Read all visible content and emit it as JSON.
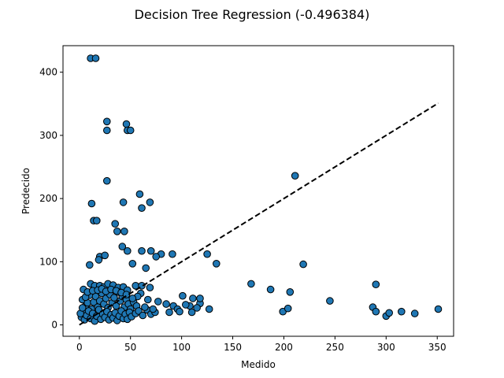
{
  "chart_data": {
    "type": "scatter",
    "title": "Decision Tree Regression (-0.496384)",
    "xlabel": "Medido",
    "ylabel": "Predecido",
    "xlim": [
      -16,
      366
    ],
    "ylim": [
      -18,
      442
    ],
    "xticks": [
      0,
      50,
      100,
      150,
      200,
      250,
      300,
      350
    ],
    "yticks": [
      0,
      100,
      200,
      300,
      400
    ],
    "grid": false,
    "marker_color": "#1f77b4",
    "reference_line": {
      "from": [
        0,
        0
      ],
      "to": [
        351,
        351
      ],
      "style": "dashed",
      "color": "#000000"
    },
    "points": [
      [
        11,
        422
      ],
      [
        16,
        422
      ],
      [
        46,
        318
      ],
      [
        27,
        322
      ],
      [
        27,
        308
      ],
      [
        47,
        308
      ],
      [
        50,
        308
      ],
      [
        27,
        228
      ],
      [
        211,
        236
      ],
      [
        59,
        207
      ],
      [
        43,
        194
      ],
      [
        12,
        192
      ],
      [
        69,
        194
      ],
      [
        61,
        185
      ],
      [
        14,
        165
      ],
      [
        17,
        165
      ],
      [
        35,
        160
      ],
      [
        37,
        148
      ],
      [
        44,
        148
      ],
      [
        42,
        124
      ],
      [
        47,
        117
      ],
      [
        61,
        117
      ],
      [
        70,
        117
      ],
      [
        80,
        112
      ],
      [
        91,
        112
      ],
      [
        75,
        108
      ],
      [
        125,
        112
      ],
      [
        20,
        108
      ],
      [
        25,
        110
      ],
      [
        19,
        103
      ],
      [
        10,
        95
      ],
      [
        52,
        97
      ],
      [
        65,
        90
      ],
      [
        134,
        97
      ],
      [
        219,
        96
      ],
      [
        168,
        65
      ],
      [
        187,
        56
      ],
      [
        206,
        52
      ],
      [
        245,
        38
      ],
      [
        290,
        64
      ],
      [
        287,
        28
      ],
      [
        290,
        21
      ],
      [
        300,
        14
      ],
      [
        303,
        19
      ],
      [
        315,
        21
      ],
      [
        328,
        18
      ],
      [
        351,
        25
      ],
      [
        199,
        21
      ],
      [
        204,
        26
      ],
      [
        108,
        30
      ],
      [
        118,
        34
      ],
      [
        111,
        42
      ],
      [
        118,
        42
      ],
      [
        101,
        46
      ],
      [
        127,
        25
      ],
      [
        77,
        37
      ],
      [
        85,
        33
      ],
      [
        88,
        20
      ],
      [
        92,
        30
      ],
      [
        96,
        25
      ],
      [
        98,
        21
      ],
      [
        104,
        32
      ],
      [
        110,
        20
      ],
      [
        115,
        27
      ],
      [
        4,
        56
      ],
      [
        11,
        65
      ],
      [
        15,
        62
      ],
      [
        20,
        62
      ],
      [
        24,
        60
      ],
      [
        28,
        65
      ],
      [
        33,
        63
      ],
      [
        38,
        59
      ],
      [
        43,
        60
      ],
      [
        47,
        55
      ],
      [
        55,
        62
      ],
      [
        61,
        62
      ],
      [
        69,
        59
      ],
      [
        3,
        40
      ],
      [
        6,
        30
      ],
      [
        8,
        35
      ],
      [
        10,
        47
      ],
      [
        12,
        25
      ],
      [
        14,
        36
      ],
      [
        16,
        45
      ],
      [
        18,
        28
      ],
      [
        20,
        38
      ],
      [
        22,
        50
      ],
      [
        24,
        33
      ],
      [
        26,
        42
      ],
      [
        28,
        27
      ],
      [
        30,
        48
      ],
      [
        32,
        35
      ],
      [
        34,
        43
      ],
      [
        36,
        30
      ],
      [
        38,
        52
      ],
      [
        40,
        38
      ],
      [
        42,
        45
      ],
      [
        44,
        28
      ],
      [
        46,
        40
      ],
      [
        48,
        33
      ],
      [
        50,
        25
      ],
      [
        53,
        36
      ],
      [
        56,
        30
      ],
      [
        2,
        12
      ],
      [
        4,
        20
      ],
      [
        5,
        8
      ],
      [
        7,
        15
      ],
      [
        9,
        22
      ],
      [
        11,
        10
      ],
      [
        13,
        18
      ],
      [
        15,
        6
      ],
      [
        17,
        14
      ],
      [
        19,
        24
      ],
      [
        21,
        9
      ],
      [
        23,
        17
      ],
      [
        25,
        12
      ],
      [
        27,
        21
      ],
      [
        29,
        8
      ],
      [
        31,
        16
      ],
      [
        33,
        11
      ],
      [
        35,
        19
      ],
      [
        37,
        7
      ],
      [
        39,
        14
      ],
      [
        41,
        22
      ],
      [
        43,
        10
      ],
      [
        45,
        17
      ],
      [
        47,
        9
      ],
      [
        49,
        20
      ],
      [
        51,
        13
      ],
      [
        55,
        18
      ],
      [
        58,
        22
      ],
      [
        62,
        15
      ],
      [
        66,
        24
      ],
      [
        70,
        17
      ],
      [
        74,
        20
      ],
      [
        60,
        50
      ],
      [
        64,
        28
      ],
      [
        67,
        40
      ],
      [
        72,
        25
      ],
      [
        57,
        45
      ],
      [
        1,
        18
      ],
      [
        3,
        27
      ],
      [
        6,
        44
      ],
      [
        8,
        52
      ],
      [
        13,
        54
      ],
      [
        18,
        55
      ],
      [
        22,
        57
      ],
      [
        26,
        53
      ],
      [
        31,
        56
      ],
      [
        36,
        54
      ],
      [
        41,
        51
      ],
      [
        46,
        48
      ],
      [
        52,
        42
      ]
    ]
  }
}
